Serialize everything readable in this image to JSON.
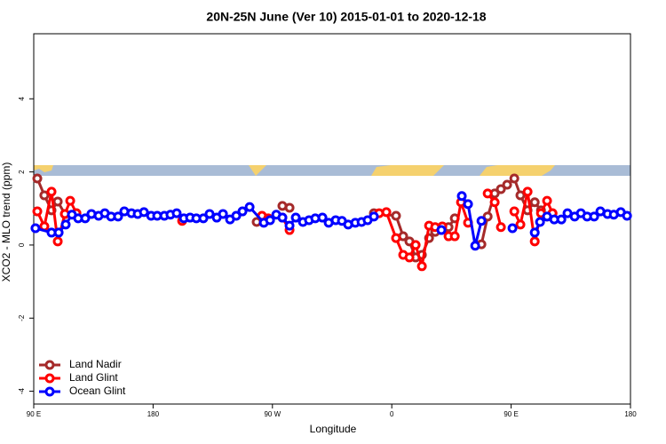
{
  "chart_data": {
    "type": "line",
    "title": "20N-25N June (Ver 10)   2015-01-01 to 2020-12-18",
    "xlabel": "Longitude",
    "ylabel": "XCO2 - MLO trend (ppm)",
    "xlim": [
      90,
      540
    ],
    "ylim": [
      -4.35,
      5.78
    ],
    "xticks": [
      {
        "value": 90,
        "label": "90 E"
      },
      180,
      {
        "value": 270,
        "label": "90 W"
      },
      {
        "value": 360,
        "label": "0"
      },
      {
        "value": 450,
        "label": "90 E"
      },
      {
        "value": 540,
        "label": "180"
      }
    ],
    "yticks": [
      -4,
      -2,
      0,
      2,
      4
    ],
    "legend": "bottom-left",
    "series": [
      {
        "name": "Land Nadir",
        "color": "#a52a2a",
        "x": [
          92.7,
          98.0,
          103.4,
          108.1,
          113.5,
          122.2,
          null,
          258.1,
          263.5,
          null,
          277.5,
          282.9,
          null,
          346.5,
          363.2,
          368.6,
          373.3,
          378.0,
          382.7,
          388.1,
          392.7,
          402.8,
          407.5,
          null,
          427.6,
          432.3,
          437.6,
          442.3,
          447.0,
          452.4,
          457.0,
          462.4,
          467.8,
          472.5,
          477.1,
          481.2
        ],
        "values": [
          1.82,
          1.36,
          0.95,
          1.19,
          0.85,
          0.87,
          null,
          0.63,
          0.68,
          null,
          1.07,
          1.02,
          null,
          0.87,
          0.8,
          0.24,
          0.1,
          -0.34,
          -0.27,
          0.19,
          0.36,
          0.49,
          0.73,
          null,
          0.02,
          0.78,
          1.41,
          1.53,
          1.65,
          1.82,
          1.36,
          0.95,
          1.17,
          0.95,
          0.78,
          0.87
        ]
      },
      {
        "name": "Land Glint",
        "color": "#ff0000",
        "x": [
          92.7,
          98.0,
          103.4,
          108.1,
          113.5,
          117.5,
          122.2,
          null,
          201.9,
          null,
          262.1,
          266.8,
          null,
          277.5,
          282.9,
          null,
          350.5,
          355.9,
          363.2,
          368.6,
          373.3,
          378.0,
          382.7,
          388.1,
          392.7,
          398.1,
          402.8,
          407.5,
          412.2,
          417.5,
          null,
          432.3,
          437.6,
          442.3,
          null,
          452.4,
          457.0,
          462.4,
          467.8,
          472.5,
          477.1,
          481.2
        ],
        "values": [
          0.92,
          0.51,
          1.46,
          0.1,
          0.85,
          1.21,
          0.87,
          null,
          0.66,
          null,
          0.8,
          0.73,
          null,
          0.75,
          0.41,
          null,
          0.87,
          0.9,
          0.19,
          -0.27,
          -0.34,
          0.0,
          -0.58,
          0.53,
          0.49,
          0.51,
          0.24,
          0.24,
          1.17,
          0.61,
          null,
          1.41,
          1.17,
          0.49,
          null,
          0.92,
          0.56,
          1.46,
          0.1,
          0.87,
          1.21,
          0.87
        ]
      },
      {
        "name": "Ocean Glint",
        "color": "#0000ff",
        "x": [
          91.3,
          103.4,
          108.8,
          114.1,
          118.8,
          123.5,
          128.8,
          133.5,
          138.9,
          143.6,
          148.3,
          153.6,
          158.3,
          163.7,
          168.4,
          173.1,
          178.5,
          183.1,
          188.5,
          193.1,
          197.8,
          203.2,
          207.9,
          212.6,
          217.9,
          222.6,
          228.0,
          232.7,
          238.0,
          242.7,
          247.4,
          252.8,
          263.5,
          268.2,
          272.9,
          277.5,
          282.9,
          287.6,
          293.0,
          297.6,
          302.3,
          307.7,
          312.4,
          317.7,
          322.4,
          327.1,
          332.5,
          337.2,
          341.8,
          346.5,
          null,
          397.4,
          null,
          412.8,
          417.5,
          422.9,
          427.6,
          null,
          451.0,
          null,
          467.8,
          471.8,
          477.1,
          482.5,
          487.9,
          492.5,
          497.9,
          502.6,
          507.3,
          512.6,
          517.3,
          522.7,
          527.4,
          532.7,
          537.4
        ],
        "values": [
          0.46,
          0.34,
          0.34,
          0.56,
          0.83,
          0.73,
          0.73,
          0.85,
          0.8,
          0.87,
          0.78,
          0.78,
          0.92,
          0.87,
          0.85,
          0.9,
          0.8,
          0.8,
          0.8,
          0.83,
          0.87,
          0.73,
          0.75,
          0.73,
          0.73,
          0.85,
          0.75,
          0.85,
          0.7,
          0.8,
          0.92,
          1.04,
          0.61,
          0.68,
          0.83,
          0.75,
          0.53,
          0.75,
          0.63,
          0.68,
          0.73,
          0.75,
          0.61,
          0.68,
          0.66,
          0.56,
          0.61,
          0.63,
          0.68,
          0.78,
          null,
          0.41,
          null,
          1.34,
          1.12,
          -0.02,
          0.66,
          null,
          0.46,
          null,
          0.34,
          0.63,
          0.78,
          0.7,
          0.7,
          0.87,
          0.78,
          0.87,
          0.78,
          0.78,
          0.92,
          0.85,
          0.83,
          0.9,
          0.8
        ]
      }
    ]
  }
}
